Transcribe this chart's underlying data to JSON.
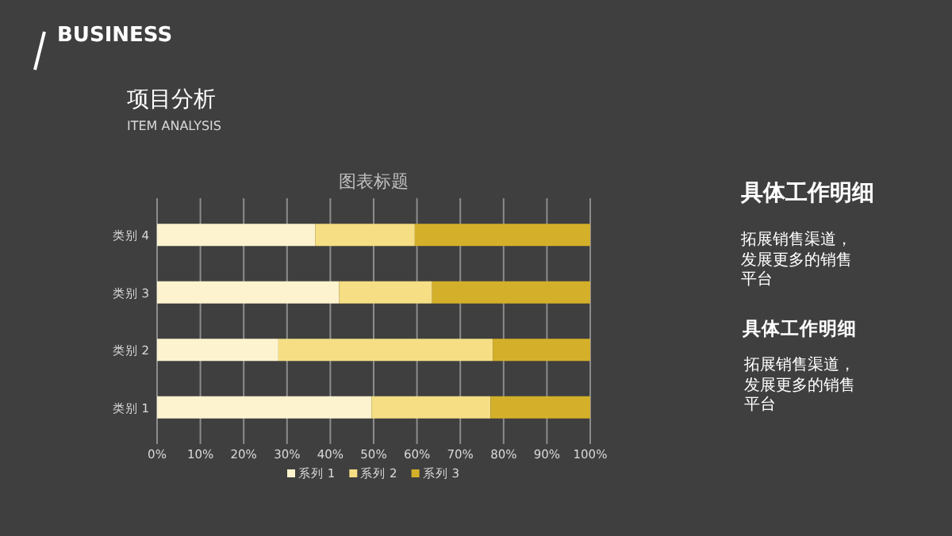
{
  "chart_data": {
    "type": "bar",
    "orientation": "horizontal",
    "stacked": true,
    "title": "图表标题",
    "categories": [
      "类别 4",
      "类别 3",
      "类别 2",
      "类别 1"
    ],
    "series": [
      {
        "name": "系列 1",
        "color": "#fdf3cf",
        "values": [
          36.5,
          42,
          28,
          49.5
        ]
      },
      {
        "name": "系列 2",
        "color": "#f5de84",
        "values": [
          23,
          21.5,
          49.5,
          27.5
        ]
      },
      {
        "name": "系列 3",
        "color": "#d4b02a",
        "values": [
          40.5,
          36.5,
          22.5,
          23
        ]
      }
    ],
    "xlim": [
      0,
      100
    ],
    "xticks": [
      {
        "value": 0,
        "label": "0%"
      },
      {
        "value": 10,
        "label": "10%"
      },
      {
        "value": 20,
        "label": "20%"
      },
      {
        "value": 30,
        "label": "30%"
      },
      {
        "value": 40,
        "label": "40%"
      },
      {
        "value": 50,
        "label": "50%"
      },
      {
        "value": 60,
        "label": "60%"
      },
      {
        "value": 70,
        "label": "70%"
      },
      {
        "value": 80,
        "label": "80%"
      },
      {
        "value": 90,
        "label": "90%"
      },
      {
        "value": 100,
        "label": "100%"
      }
    ],
    "grid": "x",
    "legend": "bottom",
    "annotations": [
      "BUSINESS",
      "项目分析",
      "ITEM ANALYSIS",
      "具体工作明细",
      "拓展销售渠道，发展更多的销售平台",
      "具体工作明细",
      "拓展销售渠道，发展更多的销售平台"
    ]
  }
}
